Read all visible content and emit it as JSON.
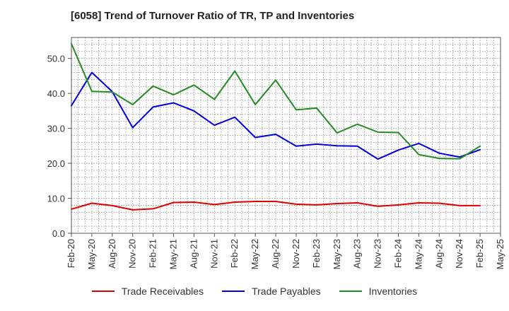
{
  "chart_data": {
    "type": "line",
    "title": "[6058]  Trend of Turnover Ratio of TR, TP and Inventories",
    "xlabel": "",
    "ylabel": "",
    "x": [
      "Feb-20",
      "May-20",
      "Aug-20",
      "Nov-20",
      "Feb-21",
      "May-21",
      "Aug-21",
      "Nov-21",
      "Feb-22",
      "May-22",
      "Aug-22",
      "Nov-22",
      "Feb-23",
      "May-23",
      "Aug-23",
      "Nov-23",
      "Feb-24",
      "May-24",
      "Aug-24",
      "Nov-24",
      "Feb-25",
      "May-25"
    ],
    "ylim": [
      0,
      56
    ],
    "yticks": [
      0,
      10,
      20,
      30,
      40,
      50
    ],
    "ytick_labels": [
      "0.0",
      "10.0",
      "20.0",
      "30.0",
      "40.0",
      "50.0"
    ],
    "grid": true,
    "legend_position": "bottom",
    "series": [
      {
        "name": "Trade Receivables",
        "color": "#e00000",
        "values": [
          6.9,
          8.6,
          7.9,
          6.7,
          7.0,
          8.8,
          8.9,
          8.2,
          8.9,
          9.1,
          9.1,
          8.3,
          8.1,
          8.5,
          8.7,
          7.7,
          8.1,
          8.7,
          8.6,
          7.9,
          7.9,
          null
        ]
      },
      {
        "name": "Trade Payables",
        "color": "#0000e0",
        "values": [
          36.5,
          46.0,
          40.5,
          30.2,
          36.1,
          37.3,
          35.0,
          30.9,
          33.2,
          27.4,
          28.3,
          24.9,
          25.5,
          25.0,
          24.9,
          21.2,
          23.8,
          25.7,
          22.9,
          21.8,
          23.9,
          null
        ]
      },
      {
        "name": "Inventories",
        "color": "#228b22",
        "values": [
          54.2,
          40.6,
          40.4,
          36.8,
          42.1,
          39.6,
          42.4,
          38.3,
          46.4,
          36.8,
          43.8,
          35.3,
          35.8,
          28.7,
          31.2,
          28.9,
          28.8,
          22.5,
          21.4,
          21.3,
          24.9,
          null
        ]
      }
    ]
  }
}
